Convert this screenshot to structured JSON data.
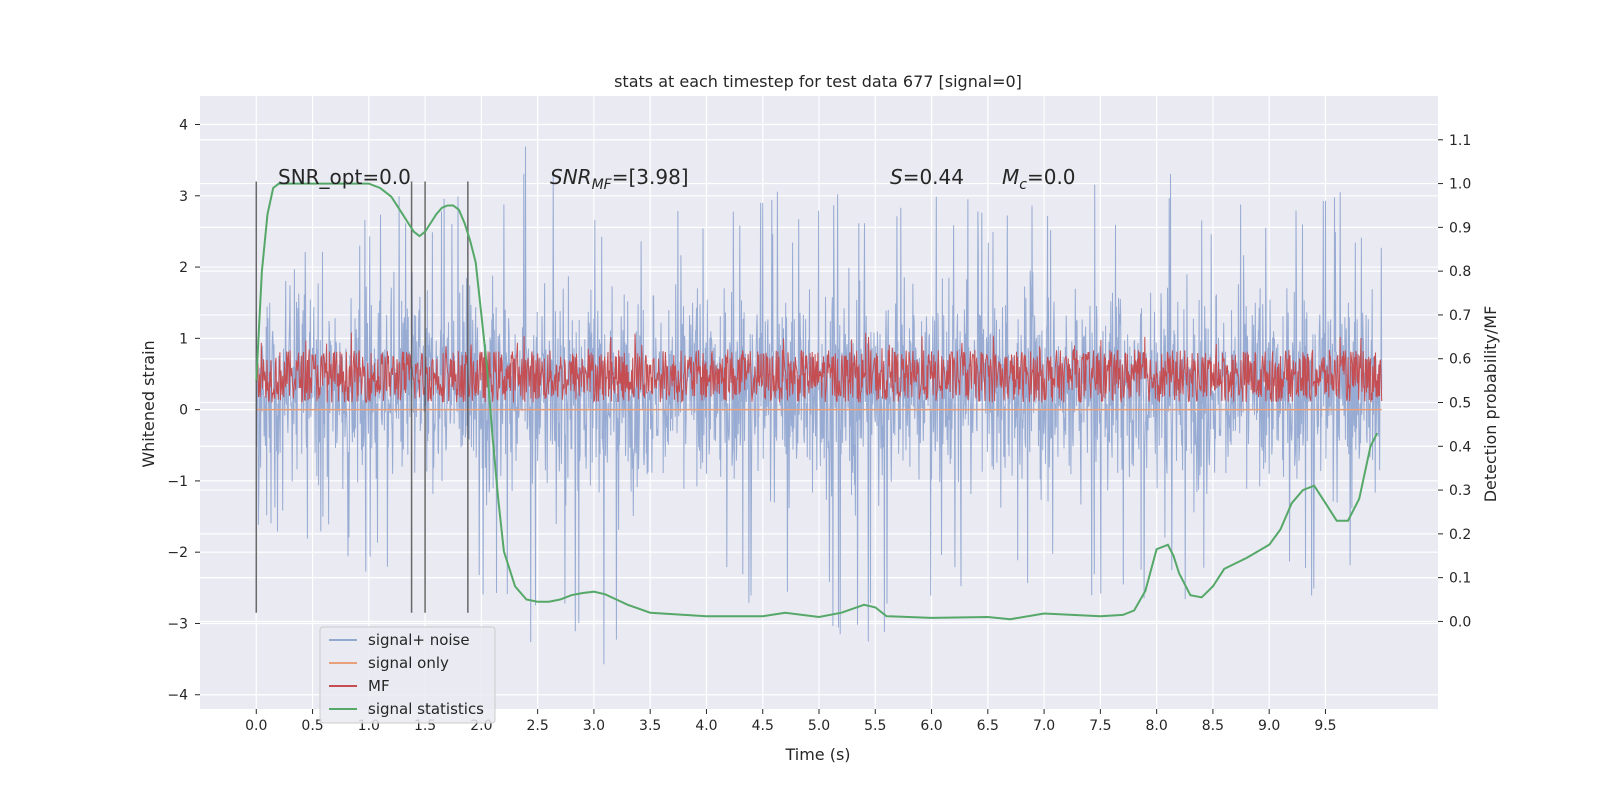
{
  "chart_data": {
    "type": "line",
    "title": "stats at each timestep for test data 677 [signal=0]",
    "xlabel": "Time (s)",
    "ylabel_left": "Whitened strain",
    "ylabel_right": "Detection probability/MF",
    "xlim": [
      -0.5,
      10.5
    ],
    "ylim_left": [
      -4.2,
      4.4
    ],
    "ylim_right": [
      -0.2,
      1.2
    ],
    "x_ticks": [
      "0.0",
      "0.5",
      "1.0",
      "1.5",
      "2.0",
      "2.5",
      "3.0",
      "3.5",
      "4.0",
      "4.5",
      "5.0",
      "5.5",
      "6.0",
      "6.5",
      "7.0",
      "7.5",
      "8.0",
      "8.5",
      "9.0",
      "9.5"
    ],
    "y_ticks_left": [
      "4",
      "3",
      "2",
      "1",
      "0",
      "−1",
      "−2",
      "−3",
      "−4"
    ],
    "y_ticks_right": [
      "1.1",
      "1.0",
      "0.9",
      "0.8",
      "0.7",
      "0.6",
      "0.5",
      "0.4",
      "0.3",
      "0.2",
      "0.1",
      "0.0"
    ],
    "grid": true,
    "legend_position": "lower-left",
    "annotations": {
      "snr_opt": "SNR_opt=0.0",
      "snr_mf": "SNR_MF=[3.98]",
      "s": "S=0.44",
      "mc": "M_c=0.0"
    },
    "vertical_markers_x": [
      0.0,
      1.38,
      1.5,
      1.88
    ],
    "series": [
      {
        "name": "signal+ noise",
        "color": "#92a8d1",
        "axis": "left",
        "description": "dense whitened noise trace, x from 0 to 10 s, roughly spanning -2 to 2.5 with spikes to 4.0 and -3.7",
        "envelope": {
          "x": [
            0.0,
            1.0,
            2.0,
            2.5,
            3.0,
            4.0,
            5.0,
            5.5,
            6.0,
            7.0,
            8.0,
            9.0,
            9.6,
            10.0
          ],
          "upper": [
            2.5,
            3.1,
            3.3,
            4.0,
            3.0,
            3.1,
            3.2,
            3.1,
            3.0,
            3.2,
            3.4,
            3.1,
            3.2,
            2.6
          ],
          "lower": [
            -1.6,
            -2.4,
            -2.6,
            -3.4,
            -3.7,
            -2.9,
            -3.1,
            -3.6,
            -2.6,
            -2.6,
            -2.9,
            -2.8,
            -2.9,
            -1.9
          ]
        }
      },
      {
        "name": "signal only",
        "color": "#e8a07a",
        "axis": "left",
        "x": [
          0.0,
          10.0
        ],
        "y": [
          0.0,
          0.0
        ]
      },
      {
        "name": "MF",
        "color": "#c44e52",
        "axis": "right",
        "description": "matched-filter output band between about 0.5 and 0.62 with peaks up to 0.66",
        "band": {
          "low": 0.5,
          "high": 0.62,
          "peak": 0.66
        }
      },
      {
        "name": "signal statistics",
        "color": "#55a868",
        "axis": "right",
        "x": [
          0.0,
          0.05,
          0.1,
          0.15,
          0.2,
          0.3,
          0.5,
          0.8,
          1.0,
          1.1,
          1.2,
          1.3,
          1.35,
          1.4,
          1.45,
          1.5,
          1.55,
          1.6,
          1.65,
          1.7,
          1.75,
          1.8,
          1.85,
          1.9,
          1.95,
          2.0,
          2.05,
          2.1,
          2.15,
          2.2,
          2.25,
          2.3,
          2.4,
          2.5,
          2.6,
          2.7,
          2.8,
          2.9,
          3.0,
          3.1,
          3.2,
          3.3,
          3.5,
          4.0,
          4.5,
          4.7,
          5.0,
          5.2,
          5.4,
          5.5,
          5.6,
          6.0,
          6.5,
          6.7,
          7.0,
          7.5,
          7.7,
          7.8,
          7.9,
          8.0,
          8.1,
          8.15,
          8.2,
          8.3,
          8.4,
          8.5,
          8.6,
          8.8,
          9.0,
          9.1,
          9.2,
          9.3,
          9.4,
          9.5,
          9.6,
          9.7,
          9.8,
          9.9,
          9.96
        ],
        "y": [
          0.55,
          0.8,
          0.93,
          0.99,
          1.0,
          1.0,
          1.0,
          1.0,
          1.0,
          0.99,
          0.97,
          0.93,
          0.91,
          0.89,
          0.88,
          0.89,
          0.91,
          0.93,
          0.945,
          0.95,
          0.95,
          0.94,
          0.91,
          0.87,
          0.82,
          0.7,
          0.58,
          0.42,
          0.28,
          0.16,
          0.12,
          0.08,
          0.05,
          0.045,
          0.045,
          0.05,
          0.06,
          0.065,
          0.068,
          0.062,
          0.05,
          0.038,
          0.02,
          0.012,
          0.012,
          0.02,
          0.01,
          0.02,
          0.038,
          0.032,
          0.012,
          0.008,
          0.01,
          0.005,
          0.018,
          0.012,
          0.015,
          0.025,
          0.07,
          0.165,
          0.175,
          0.15,
          0.11,
          0.06,
          0.055,
          0.08,
          0.12,
          0.145,
          0.175,
          0.21,
          0.27,
          0.3,
          0.31,
          0.27,
          0.23,
          0.23,
          0.28,
          0.4,
          0.43
        ]
      }
    ]
  }
}
